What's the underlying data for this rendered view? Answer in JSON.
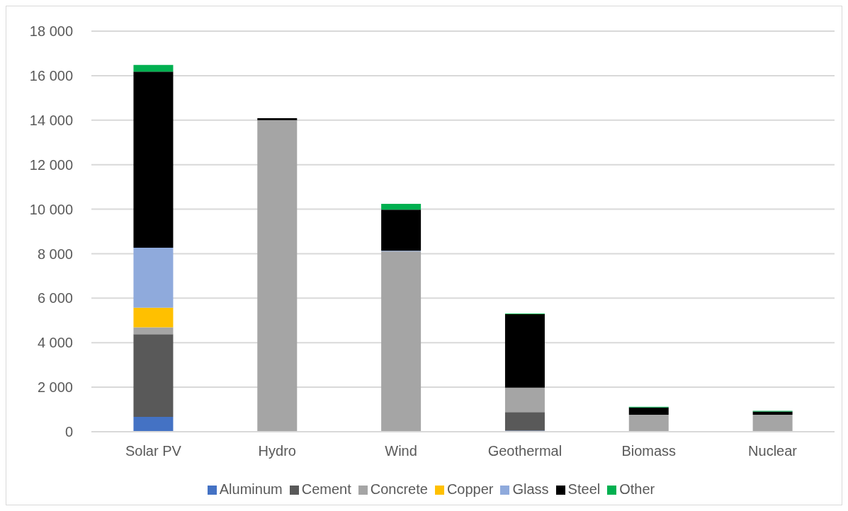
{
  "chart_data": {
    "type": "bar",
    "stacked": true,
    "categories": [
      "Solar PV",
      "Hydro",
      "Wind",
      "Geothermal",
      "Biomass",
      "Nuclear"
    ],
    "series": [
      {
        "name": "Aluminum",
        "color": "#4472c4",
        "values": [
          670,
          0,
          0,
          50,
          0,
          0
        ]
      },
      {
        "name": "Cement",
        "color": "#595959",
        "values": [
          3710,
          0,
          0,
          830,
          0,
          0
        ]
      },
      {
        "name": "Concrete",
        "color": "#a5a5a5",
        "values": [
          310,
          14000,
          8100,
          1100,
          760,
          760
        ]
      },
      {
        "name": "Copper",
        "color": "#ffc000",
        "values": [
          880,
          0,
          0,
          0,
          0,
          0
        ]
      },
      {
        "name": "Glass",
        "color": "#8faadc",
        "values": [
          2700,
          0,
          30,
          0,
          0,
          0
        ]
      },
      {
        "name": "Steel",
        "color": "#000000",
        "values": [
          7910,
          90,
          1850,
          3300,
          330,
          150
        ]
      },
      {
        "name": "Other",
        "color": "#00b050",
        "values": [
          300,
          0,
          260,
          30,
          30,
          30
        ]
      }
    ],
    "ylim": [
      0,
      18000
    ],
    "yticks": [
      {
        "value": 0,
        "label": "0"
      },
      {
        "value": 2000,
        "label": "2 000"
      },
      {
        "value": 4000,
        "label": "4 000"
      },
      {
        "value": 6000,
        "label": "6 000"
      },
      {
        "value": 8000,
        "label": "8 000"
      },
      {
        "value": 10000,
        "label": "10 000"
      },
      {
        "value": 12000,
        "label": "12 000"
      },
      {
        "value": 14000,
        "label": "14 000"
      },
      {
        "value": 16000,
        "label": "16 000"
      },
      {
        "value": 18000,
        "label": "18 000"
      }
    ],
    "grid": "y",
    "legend": "bottom"
  }
}
